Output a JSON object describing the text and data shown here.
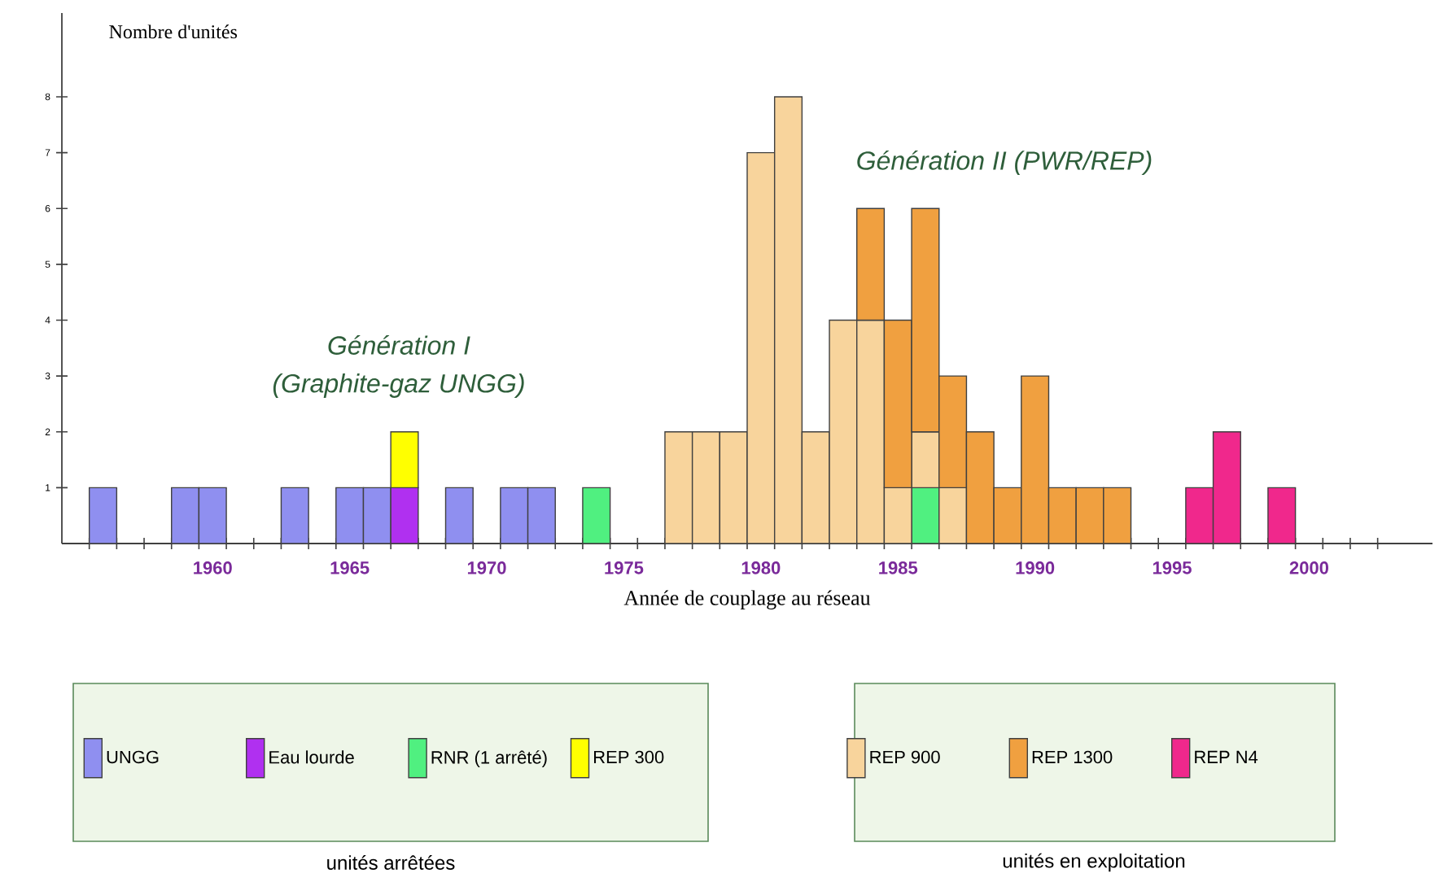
{
  "chart_data": {
    "type": "bar",
    "stacked": true,
    "xlabel": "Année de couplage au réseau",
    "ylabel": "Nombre d'unités",
    "x": [
      1956,
      1959,
      1960,
      1963,
      1965,
      1966,
      1967,
      1969,
      1971,
      1972,
      1974,
      1977,
      1978,
      1979,
      1980,
      1981,
      1982,
      1983,
      1984,
      1985,
      1986,
      1987,
      1988,
      1989,
      1990,
      1991,
      1992,
      1993,
      1996,
      1997,
      1999
    ],
    "series": [
      {
        "name": "UNGG",
        "color": "#8f8ff0",
        "values": [
          1,
          1,
          1,
          1,
          1,
          1,
          null,
          1,
          1,
          1,
          null,
          null,
          null,
          null,
          null,
          null,
          null,
          null,
          null,
          null,
          null,
          null,
          null,
          null,
          null,
          null,
          null,
          null,
          null,
          null,
          null
        ]
      },
      {
        "name": "Eau lourde",
        "color": "#b030f0",
        "values": [
          null,
          null,
          null,
          null,
          null,
          null,
          1,
          null,
          null,
          null,
          null,
          null,
          null,
          null,
          null,
          null,
          null,
          null,
          null,
          null,
          null,
          null,
          null,
          null,
          null,
          null,
          null,
          null,
          null,
          null,
          null
        ]
      },
      {
        "name": "RNR (1 arrêté)",
        "color": "#50f080",
        "values": [
          null,
          null,
          null,
          null,
          null,
          null,
          null,
          null,
          null,
          null,
          1,
          null,
          null,
          null,
          null,
          null,
          null,
          null,
          null,
          null,
          1,
          null,
          null,
          null,
          null,
          null,
          null,
          null,
          null,
          null,
          null
        ]
      },
      {
        "name": "REP 300",
        "color": "#ffff00",
        "values": [
          null,
          null,
          null,
          null,
          null,
          null,
          1,
          null,
          null,
          null,
          null,
          null,
          null,
          null,
          null,
          null,
          null,
          null,
          null,
          null,
          null,
          null,
          null,
          null,
          null,
          null,
          null,
          null,
          null,
          null,
          null
        ]
      },
      {
        "name": "REP 900",
        "color": "#f8d49c",
        "values": [
          null,
          null,
          null,
          null,
          null,
          null,
          null,
          null,
          null,
          null,
          null,
          2,
          2,
          2,
          7,
          8,
          2,
          4,
          4,
          1,
          1,
          1,
          null,
          null,
          null,
          null,
          null,
          null,
          null,
          null,
          null
        ]
      },
      {
        "name": "REP 1300",
        "color": "#f0a040",
        "values": [
          null,
          null,
          null,
          null,
          null,
          null,
          null,
          null,
          null,
          null,
          null,
          null,
          null,
          null,
          null,
          null,
          null,
          null,
          2,
          3,
          4,
          2,
          2,
          1,
          3,
          1,
          1,
          1,
          null,
          null,
          null
        ]
      },
      {
        "name": "REP N4",
        "color": "#f0288c",
        "values": [
          null,
          null,
          null,
          null,
          null,
          null,
          null,
          null,
          null,
          null,
          null,
          null,
          null,
          null,
          null,
          null,
          null,
          null,
          null,
          null,
          null,
          null,
          null,
          null,
          null,
          null,
          null,
          null,
          1,
          2,
          1
        ]
      }
    ],
    "xlim": [
      1954.5,
      2004.5
    ],
    "ylim": [
      0,
      9.5
    ],
    "xticks": [
      1960,
      1965,
      1970,
      1975,
      1980,
      1985,
      1990,
      1995,
      2000,
      {
        "value": 1955.5,
        "label": null
      },
      {
        "value": 1956.5,
        "label": null
      },
      {
        "value": 1957.5,
        "label": null
      },
      {
        "value": 1958.5,
        "label": null
      },
      {
        "value": 1959.5,
        "label": null
      },
      {
        "value": 1960.5,
        "label": null
      },
      {
        "value": 1961.5,
        "label": null
      },
      {
        "value": 1962.5,
        "label": null
      },
      {
        "value": 1963.5,
        "label": null
      },
      {
        "value": 1964.5,
        "label": null
      },
      {
        "value": 1965.5,
        "label": null
      },
      {
        "value": 1966.5,
        "label": null
      },
      {
        "value": 1967.5,
        "label": null
      },
      {
        "value": 1968.5,
        "label": null
      },
      {
        "value": 1969.5,
        "label": null
      },
      {
        "value": 1970.5,
        "label": null
      },
      {
        "value": 1971.5,
        "label": null
      },
      {
        "value": 1972.5,
        "label": null
      },
      {
        "value": 1973.5,
        "label": null
      },
      {
        "value": 1974.5,
        "label": null
      },
      {
        "value": 1975.5,
        "label": null
      },
      {
        "value": 1976.5,
        "label": null
      },
      {
        "value": 1977.5,
        "label": null
      },
      {
        "value": 1978.5,
        "label": null
      },
      {
        "value": 1979.5,
        "label": null
      },
      {
        "value": 1980.5,
        "label": null
      },
      {
        "value": 1981.5,
        "label": null
      },
      {
        "value": 1982.5,
        "label": null
      },
      {
        "value": 1983.5,
        "label": null
      },
      {
        "value": 1984.5,
        "label": null
      },
      {
        "value": 1985.5,
        "label": null
      },
      {
        "value": 1986.5,
        "label": null
      },
      {
        "value": 1987.5,
        "label": null
      },
      {
        "value": 1988.5,
        "label": null
      },
      {
        "value": 1989.5,
        "label": null
      },
      {
        "value": 1990.5,
        "label": null
      },
      {
        "value": 1991.5,
        "label": null
      },
      {
        "value": 1992.5,
        "label": null
      },
      {
        "value": 1993.5,
        "label": null
      },
      {
        "value": 1994.5,
        "label": null
      },
      {
        "value": 1995.5,
        "label": null
      },
      {
        "value": 1996.5,
        "label": null
      },
      {
        "value": 1997.5,
        "label": null
      },
      {
        "value": 1998.5,
        "label": null
      },
      {
        "value": 1999.5,
        "label": null
      },
      {
        "value": 2000.5,
        "label": null
      },
      {
        "value": 2001.5,
        "label": null
      },
      {
        "value": 2002.5,
        "label": null
      }
    ],
    "yticks": [
      1,
      2,
      3,
      4,
      5,
      6,
      7,
      8
    ],
    "annotations": [
      "Génération I",
      "(Graphite-gaz UNGG)",
      "Génération II (PWR/REP)",
      "unités arrêtées",
      "unités en exploitation"
    ],
    "legend": "bottom"
  }
}
